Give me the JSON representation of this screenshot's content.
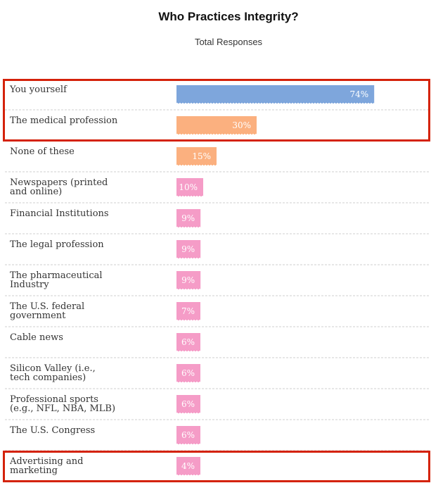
{
  "chart_data": {
    "type": "bar",
    "orientation": "horizontal",
    "title": "Who Practices Integrity?",
    "subtitle": "Total Responses",
    "xlabel": "",
    "ylabel": "",
    "xlim": [
      0,
      100
    ],
    "grid": false,
    "categories": [
      "You yourself",
      "The medical profession",
      "None of these",
      "Newspapers (printed and online)",
      "Financial Institutions",
      "The legal profession",
      "The pharmaceutical Industry",
      "The U.S. federal government",
      "Cable news",
      "Silicon Valley (i.e., tech companies)",
      "Professional sports (e.g., NFL, NBA, MLB)",
      "The U.S. Congress",
      "Advertising and marketing"
    ],
    "values": [
      74,
      30,
      15,
      10,
      9,
      9,
      9,
      7,
      6,
      6,
      6,
      6,
      4
    ],
    "value_labels": [
      "74%",
      "30%",
      "15%",
      "10%",
      "9%",
      "9%",
      "9%",
      "7%",
      "6%",
      "6%",
      "6%",
      "6%",
      "4%"
    ],
    "bar_colors": [
      "#7ea6dc",
      "#fbb07f",
      "#fbb07f",
      "#f59cc7",
      "#f59cc7",
      "#f59cc7",
      "#f59cc7",
      "#f59cc7",
      "#f59cc7",
      "#f59cc7",
      "#f59cc7",
      "#f59cc7",
      "#f59cc7"
    ],
    "highlight_color": "#d4220a",
    "highlighted_groups": [
      [
        0,
        1
      ],
      [
        12
      ]
    ]
  }
}
